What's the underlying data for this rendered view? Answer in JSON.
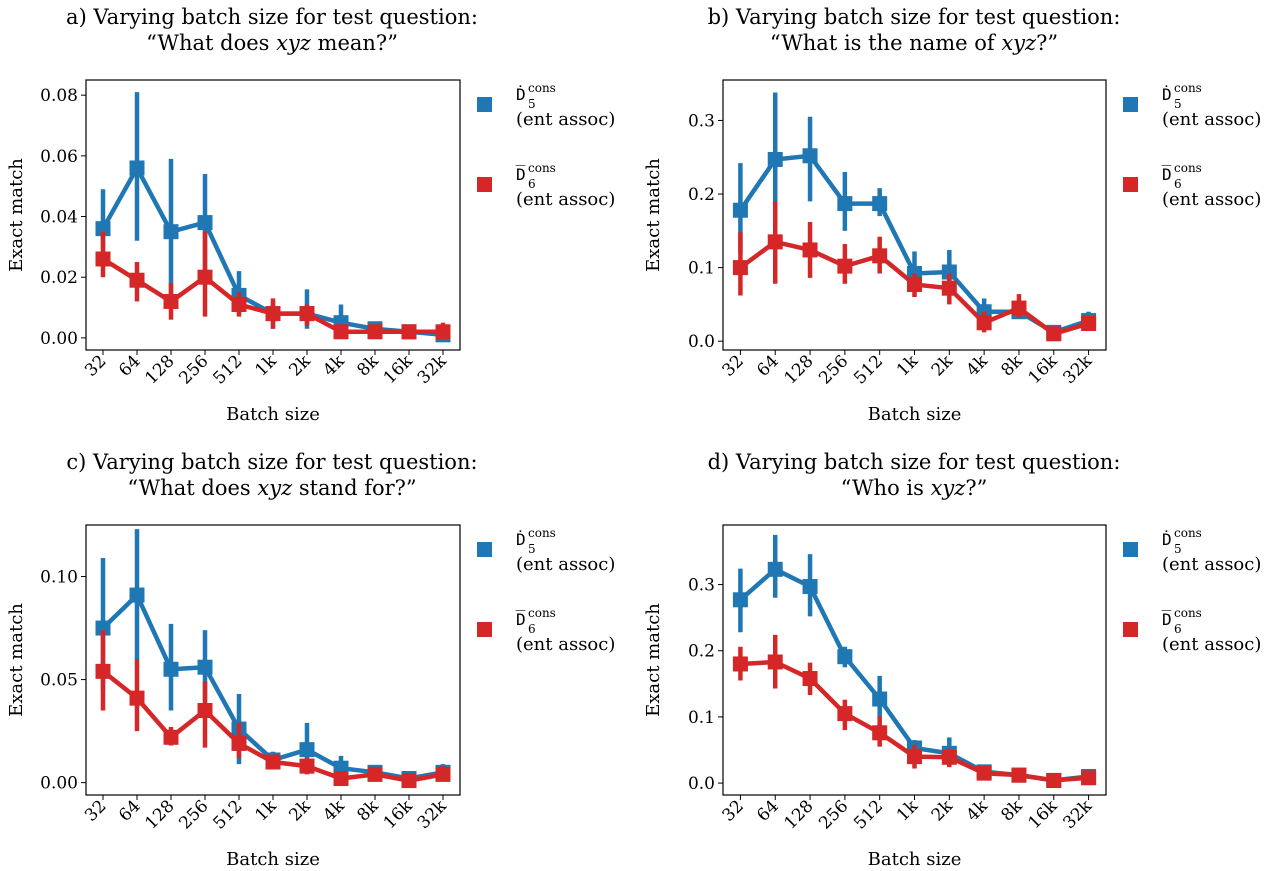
{
  "colors": {
    "series1": "#1f77b4",
    "series2": "#d62728"
  },
  "legend": [
    {
      "sym": "Ḋ",
      "sub": "5",
      "sup": "cons",
      "line2": "(ent assoc)"
    },
    {
      "sym": "D̅",
      "sub": "6",
      "sup": "cons",
      "line2": "(ent assoc)"
    }
  ],
  "chart_data": [
    {
      "type": "line",
      "title_line1": "a) Varying batch size for test question:",
      "title_line2": [
        "“What does ",
        "xyz",
        " mean?”"
      ],
      "xlabel": "Batch size",
      "ylabel": "Exact match",
      "categories": [
        "32",
        "64",
        "128",
        "256",
        "512",
        "1k",
        "2k",
        "4k",
        "8k",
        "16k",
        "32k"
      ],
      "ylim": [
        -0.004,
        0.085
      ],
      "yticks": [
        "0.00",
        "0.02",
        "0.04",
        "0.06",
        "0.08"
      ],
      "series": [
        {
          "values": [
            0.036,
            0.056,
            0.035,
            0.038,
            0.014,
            0.008,
            0.008,
            0.005,
            0.003,
            0.002,
            0.001
          ],
          "lo": [
            0.029,
            0.032,
            0.012,
            0.02,
            0.008,
            0.003,
            0.003,
            0.0,
            0.001,
            0.0,
            0.0
          ],
          "hi": [
            0.049,
            0.081,
            0.059,
            0.054,
            0.022,
            0.012,
            0.016,
            0.011,
            0.004,
            0.004,
            0.002
          ]
        },
        {
          "values": [
            0.026,
            0.019,
            0.012,
            0.02,
            0.011,
            0.008,
            0.008,
            0.002,
            0.002,
            0.002,
            0.002
          ],
          "lo": [
            0.02,
            0.012,
            0.006,
            0.007,
            0.007,
            0.003,
            0.004,
            0.0,
            0.001,
            0.0,
            0.0
          ],
          "hi": [
            0.035,
            0.025,
            0.018,
            0.035,
            0.015,
            0.013,
            0.011,
            0.003,
            0.003,
            0.003,
            0.005
          ]
        }
      ]
    },
    {
      "type": "line",
      "title_line1": "b) Varying batch size for test question:",
      "title_line2": [
        "“What is the name of ",
        "xyz",
        "?”"
      ],
      "xlabel": "Batch size",
      "ylabel": "Exact match",
      "categories": [
        "32",
        "64",
        "128",
        "256",
        "512",
        "1k",
        "2k",
        "4k",
        "8k",
        "16k",
        "32k"
      ],
      "ylim": [
        -0.012,
        0.355
      ],
      "yticks": [
        "0.0",
        "0.1",
        "0.2",
        "0.3"
      ],
      "series": [
        {
          "values": [
            0.178,
            0.247,
            0.252,
            0.187,
            0.187,
            0.092,
            0.094,
            0.04,
            0.04,
            0.012,
            0.028
          ],
          "lo": [
            0.12,
            0.16,
            0.19,
            0.15,
            0.17,
            0.068,
            0.068,
            0.022,
            0.032,
            0.003,
            0.018
          ],
          "hi": [
            0.242,
            0.338,
            0.305,
            0.23,
            0.208,
            0.122,
            0.124,
            0.058,
            0.052,
            0.018,
            0.04
          ]
        },
        {
          "values": [
            0.1,
            0.135,
            0.124,
            0.102,
            0.116,
            0.077,
            0.072,
            0.025,
            0.045,
            0.01,
            0.024
          ],
          "lo": [
            0.062,
            0.078,
            0.086,
            0.078,
            0.092,
            0.06,
            0.05,
            0.012,
            0.032,
            0.002,
            0.016
          ],
          "hi": [
            0.148,
            0.19,
            0.162,
            0.132,
            0.142,
            0.092,
            0.092,
            0.04,
            0.064,
            0.018,
            0.034
          ]
        }
      ]
    },
    {
      "type": "line",
      "title_line1": "c) Varying batch size for test question:",
      "title_line2": [
        "“What does ",
        "xyz",
        " stand for?”"
      ],
      "xlabel": "Batch size",
      "ylabel": "Exact match",
      "categories": [
        "32",
        "64",
        "128",
        "256",
        "512",
        "1k",
        "2k",
        "4k",
        "8k",
        "16k",
        "32k"
      ],
      "ylim": [
        -0.006,
        0.125
      ],
      "yticks": [
        "0.00",
        "0.05",
        "0.10"
      ],
      "series": [
        {
          "values": [
            0.075,
            0.091,
            0.055,
            0.056,
            0.026,
            0.011,
            0.016,
            0.007,
            0.005,
            0.002,
            0.005
          ],
          "lo": [
            0.045,
            0.06,
            0.035,
            0.04,
            0.009,
            0.007,
            0.005,
            0.002,
            0.002,
            0.0,
            0.002
          ],
          "hi": [
            0.109,
            0.123,
            0.077,
            0.074,
            0.043,
            0.015,
            0.029,
            0.013,
            0.008,
            0.004,
            0.009
          ]
        },
        {
          "values": [
            0.054,
            0.041,
            0.022,
            0.035,
            0.019,
            0.01,
            0.008,
            0.002,
            0.004,
            0.001,
            0.004
          ],
          "lo": [
            0.035,
            0.025,
            0.018,
            0.017,
            0.012,
            0.007,
            0.004,
            0.0,
            0.001,
            0.0,
            0.001
          ],
          "hi": [
            0.074,
            0.06,
            0.027,
            0.049,
            0.029,
            0.013,
            0.012,
            0.004,
            0.007,
            0.003,
            0.008
          ]
        }
      ]
    },
    {
      "type": "line",
      "title_line1": "d) Varying batch size for test question:",
      "title_line2": [
        "“Who is ",
        "xyz",
        "?”"
      ],
      "xlabel": "Batch size",
      "ylabel": "Exact match",
      "categories": [
        "32",
        "64",
        "128",
        "256",
        "512",
        "1k",
        "2k",
        "4k",
        "8k",
        "16k",
        "32k"
      ],
      "ylim": [
        -0.018,
        0.39
      ],
      "yticks": [
        "0.0",
        "0.1",
        "0.2",
        "0.3"
      ],
      "series": [
        {
          "values": [
            0.277,
            0.323,
            0.297,
            0.191,
            0.127,
            0.053,
            0.045,
            0.017,
            0.012,
            0.004,
            0.01
          ],
          "lo": [
            0.228,
            0.28,
            0.252,
            0.175,
            0.1,
            0.04,
            0.03,
            0.01,
            0.007,
            0.001,
            0.005
          ],
          "hi": [
            0.324,
            0.375,
            0.346,
            0.206,
            0.162,
            0.065,
            0.069,
            0.025,
            0.017,
            0.008,
            0.016
          ]
        },
        {
          "values": [
            0.18,
            0.183,
            0.158,
            0.105,
            0.076,
            0.04,
            0.039,
            0.015,
            0.012,
            0.004,
            0.008
          ],
          "lo": [
            0.155,
            0.143,
            0.133,
            0.08,
            0.055,
            0.022,
            0.024,
            0.008,
            0.007,
            0.001,
            0.003
          ],
          "hi": [
            0.206,
            0.224,
            0.182,
            0.126,
            0.101,
            0.058,
            0.052,
            0.023,
            0.017,
            0.007,
            0.013
          ]
        }
      ]
    }
  ]
}
